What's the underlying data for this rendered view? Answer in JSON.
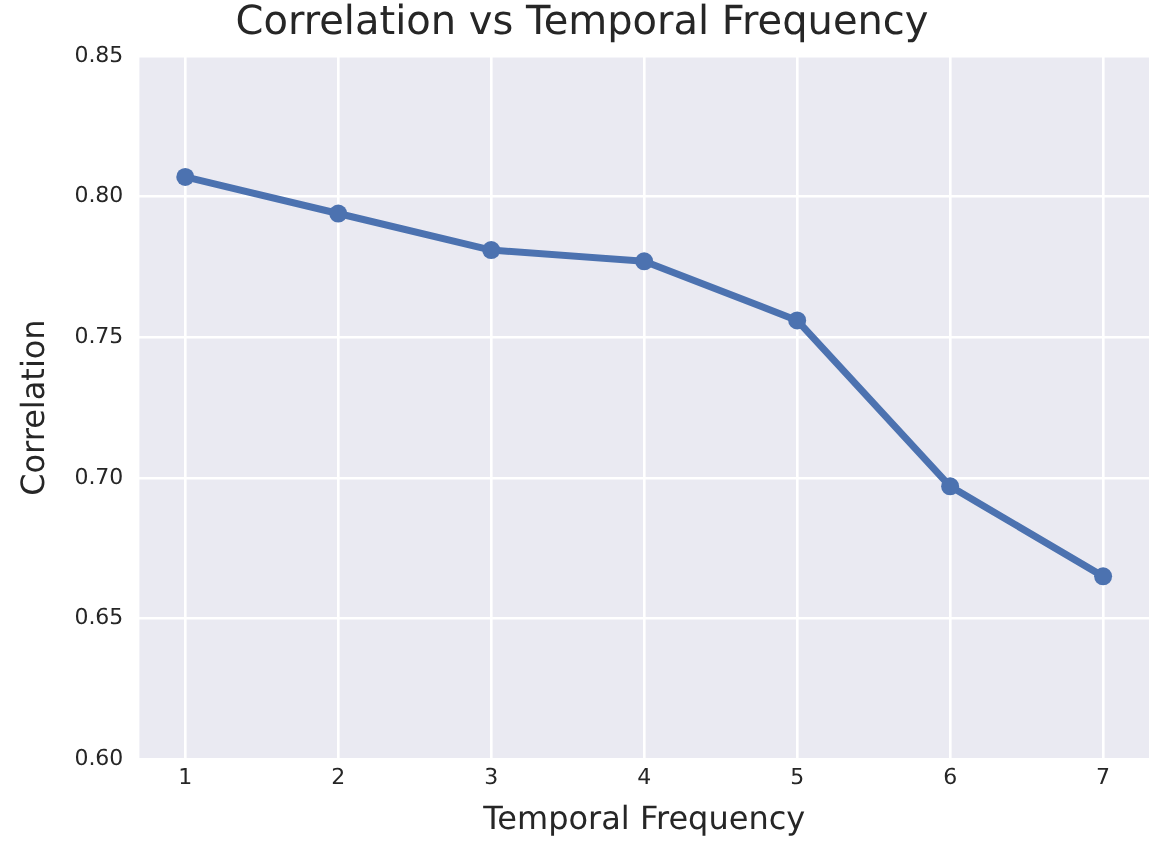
{
  "chart_data": {
    "type": "line",
    "title": "Correlation vs Temporal Frequency",
    "xlabel": "Temporal Frequency",
    "ylabel": "Correlation",
    "x": [
      1,
      2,
      3,
      4,
      5,
      6,
      7
    ],
    "series": [
      {
        "color": "#4c72b0",
        "values": [
          0.807,
          0.794,
          0.781,
          0.777,
          0.756,
          0.697,
          0.665
        ]
      }
    ],
    "xlim": [
      0.7,
      7.3
    ],
    "xticks": [
      1,
      2,
      3,
      4,
      5,
      6,
      7
    ],
    "ylim": [
      0.6,
      0.85
    ],
    "yticks": [
      {
        "value": 0.6,
        "label": "0.60"
      },
      {
        "value": 0.65,
        "label": "0.65"
      },
      {
        "value": 0.7,
        "label": "0.70"
      },
      {
        "value": 0.75,
        "label": "0.75"
      },
      {
        "value": 0.8,
        "label": "0.80"
      },
      {
        "value": 0.85,
        "label": "0.85"
      }
    ],
    "grid": true,
    "legend": false,
    "marker": "circle",
    "line_style": "solid"
  }
}
